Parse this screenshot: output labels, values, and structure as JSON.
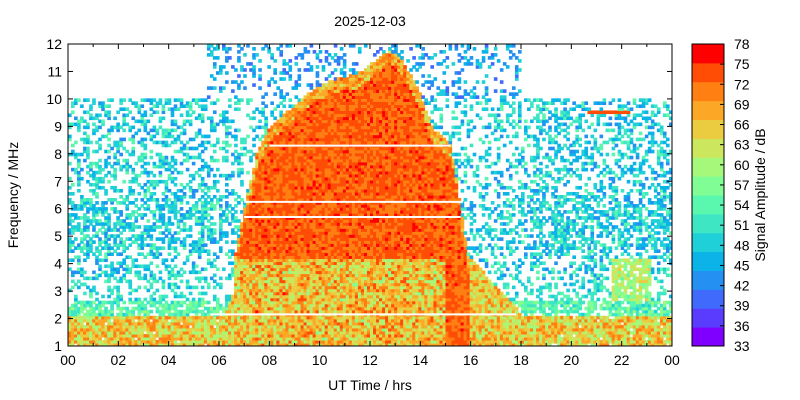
{
  "chart_data": {
    "type": "heatmap",
    "title": "2025-12-03",
    "xlabel": "UT Time / hrs",
    "ylabel": "Frequency / MHz",
    "xlim": [
      0,
      24
    ],
    "ylim": [
      1,
      12
    ],
    "x_ticks": [
      "00",
      "02",
      "04",
      "06",
      "08",
      "10",
      "12",
      "14",
      "16",
      "18",
      "20",
      "22",
      "00"
    ],
    "y_ticks": [
      "1",
      "2",
      "3",
      "4",
      "5",
      "6",
      "7",
      "8",
      "9",
      "10",
      "11",
      "12"
    ],
    "colorbar": {
      "label": "Signal Amplitude / dB",
      "min": 33,
      "max": 78,
      "ticks": [
        "33",
        "36",
        "39",
        "42",
        "45",
        "48",
        "51",
        "54",
        "57",
        "60",
        "63",
        "66",
        "69",
        "72",
        "75",
        "78"
      ],
      "colors": [
        "#7f00ff",
        "#5a3cfe",
        "#3f6afb",
        "#2390f2",
        "#0bb3e8",
        "#1fd0d8",
        "#3ee6c4",
        "#5af7ae",
        "#80fe95",
        "#a5f87a",
        "#cce65d",
        "#ebcb3f",
        "#fca826",
        "#ff7f12",
        "#ff4d06",
        "#ff0000"
      ]
    },
    "features": [
      {
        "name": "daytime-band",
        "time_hrs": [
          5.8,
          18.0
        ],
        "freq_mhz": [
          1,
          11.9
        ],
        "peak_db": 78
      },
      {
        "name": "low-band-night",
        "time_hrs": [
          0,
          24
        ],
        "freq_mhz": [
          1,
          2.6
        ],
        "level_db": 72
      },
      {
        "name": "upper-band-night",
        "time_hrs": [
          0,
          24
        ],
        "freq_mhz": [
          3.5,
          10
        ],
        "level_db": 50
      },
      {
        "name": "evening-feature",
        "time_hrs": [
          21.6,
          23.2
        ],
        "freq_mhz": [
          1,
          4.2
        ],
        "level_db": 62
      },
      {
        "name": "carrier-9.5MHz",
        "time_hrs": [
          20.5,
          22.4
        ],
        "freq_mhz": [
          9.5,
          9.5
        ],
        "level_db": 75
      }
    ]
  }
}
